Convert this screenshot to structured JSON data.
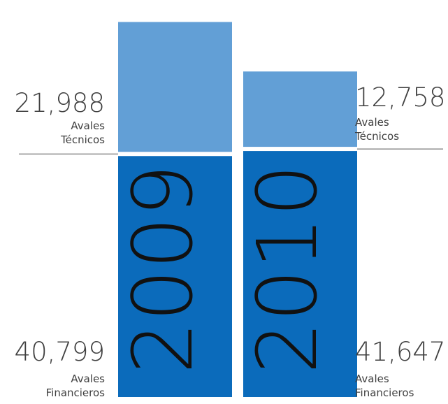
{
  "chart_data": {
    "type": "bar",
    "stacked": true,
    "categories": [
      "2009",
      "2010"
    ],
    "series": [
      {
        "name": "Avales Financieros",
        "values": [
          40799,
          41647
        ]
      },
      {
        "name": "Avales Técnicos",
        "values": [
          21988,
          12758
        ]
      }
    ],
    "labels": {
      "2009": {
        "tecnicos_value": "21,988",
        "tecnicos_line1": "Avales",
        "tecnicos_line2": "Técnicos",
        "financieros_value": "40,799",
        "financieros_line1": "Avales",
        "financieros_line2": "Financieros"
      },
      "2010": {
        "tecnicos_value": "12,758",
        "tecnicos_line1": "Avales",
        "tecnicos_line2": "Técnicos",
        "financieros_value": "41,647",
        "financieros_line1": "Avales",
        "financieros_line2": "Financieros"
      }
    },
    "colors": {
      "Avales Financieros": "#0b6bbb",
      "Avales Técnicos": "#629fd6",
      "divider": "#555555"
    },
    "grid": false,
    "legend": "none"
  }
}
